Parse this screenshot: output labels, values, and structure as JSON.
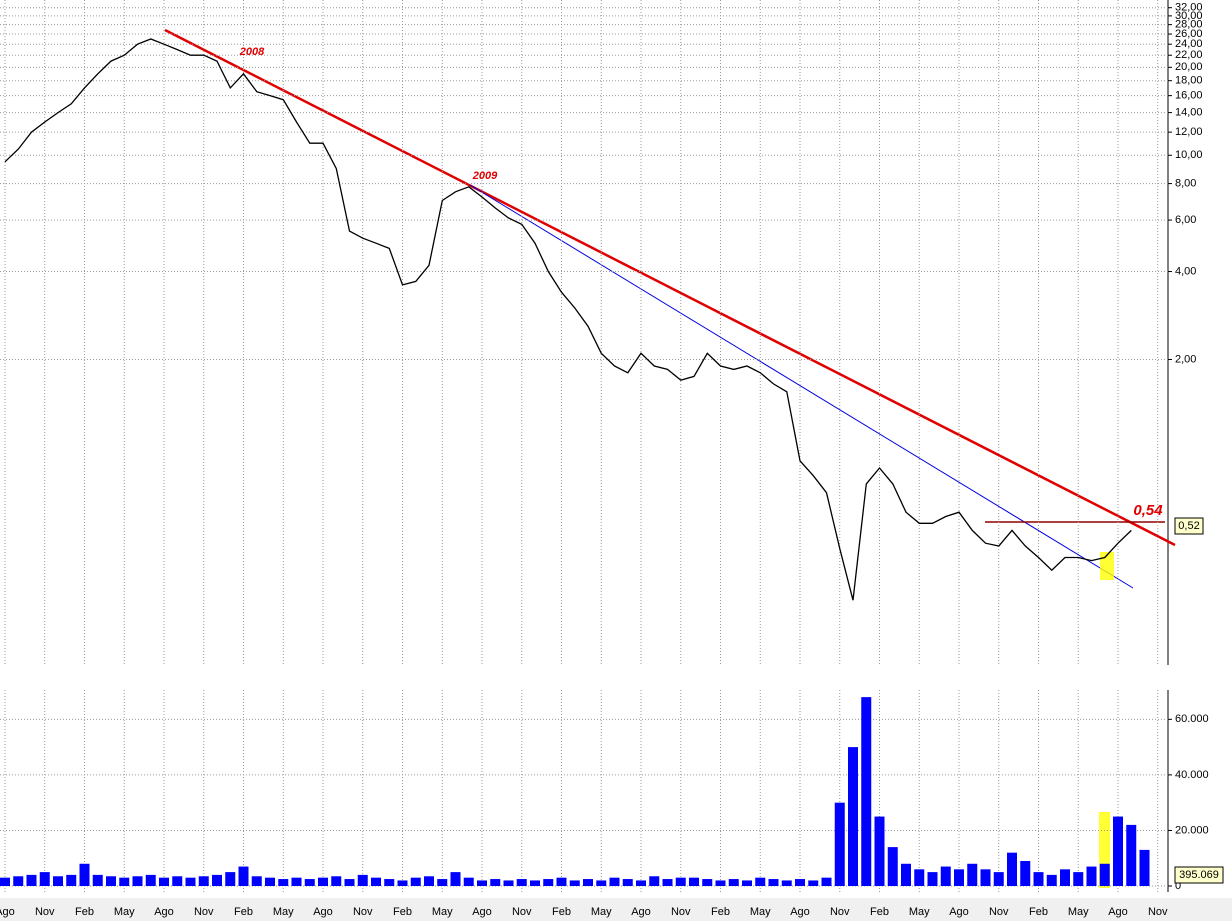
{
  "chart_data": [
    {
      "type": "line",
      "log_scale": true,
      "grid": true,
      "series": [
        {
          "name": "Price",
          "color": "#000000",
          "values": [
            9.5,
            10.5,
            12,
            13,
            14,
            15,
            17,
            19,
            21,
            22,
            24,
            25,
            24,
            23,
            22,
            22,
            21,
            17,
            19,
            16.5,
            16,
            15.5,
            13,
            11,
            11,
            9,
            5.5,
            5.2,
            5,
            4.8,
            3.6,
            3.7,
            4.2,
            7.0,
            7.5,
            7.8,
            7.2,
            6.6,
            6.1,
            5.8,
            5.0,
            4.0,
            3.4,
            3.0,
            2.6,
            2.1,
            1.9,
            1.8,
            2.1,
            1.9,
            1.85,
            1.7,
            1.75,
            2.1,
            1.9,
            1.85,
            1.9,
            1.8,
            1.65,
            1.55,
            0.9,
            0.8,
            0.7,
            0.45,
            0.3,
            0.75,
            0.85,
            0.75,
            0.6,
            0.55,
            0.55,
            0.58,
            0.6,
            0.52,
            0.47,
            0.46,
            0.52,
            0.46,
            0.42,
            0.38,
            0.42,
            0.42,
            0.41,
            0.42,
            0.47,
            0.52,
            null,
            null
          ]
        }
      ],
      "ylim": [
        0.18,
        34
      ],
      "yticks": [
        {
          "value": 32,
          "label": "32,00"
        },
        {
          "value": 30,
          "label": "30,00"
        },
        {
          "value": 28,
          "label": "28,00"
        },
        {
          "value": 26,
          "label": "26,00"
        },
        {
          "value": 24,
          "label": "24,00"
        },
        {
          "value": 22,
          "label": "22,00"
        },
        {
          "value": 20,
          "label": "20,00"
        },
        {
          "value": 18,
          "label": "18,00"
        },
        {
          "value": 16,
          "label": "16,00"
        },
        {
          "value": 14,
          "label": "14,00"
        },
        {
          "value": 12,
          "label": "12,00"
        },
        {
          "value": 10,
          "label": "10,00"
        },
        {
          "value": 8,
          "label": "8,00"
        },
        {
          "value": 6,
          "label": "6,00"
        },
        {
          "value": 4,
          "label": "4,00"
        },
        {
          "value": 2,
          "label": "2,00"
        }
      ],
      "annotations": [
        "2008",
        "2009",
        "0,54"
      ],
      "last_label": "0,52"
    },
    {
      "type": "bar",
      "grid": true,
      "color": "#0000ff",
      "categories": [
        "Ago",
        null,
        null,
        "Nov",
        null,
        null,
        "Feb",
        null,
        null,
        "May",
        null,
        null,
        "Ago",
        null,
        null,
        "Nov",
        null,
        null,
        "Feb",
        null,
        null,
        "May",
        null,
        null,
        "Ago",
        null,
        null,
        "Nov",
        null,
        null,
        "Feb",
        null,
        null,
        "May",
        null,
        null,
        "Ago",
        null,
        null,
        "Nov",
        null,
        null,
        "Feb",
        null,
        null,
        "May",
        null,
        null,
        "Ago",
        null,
        null,
        "Nov",
        null,
        null,
        "Feb",
        null,
        null,
        "May",
        null,
        null,
        "Ago",
        null,
        null,
        "Nov",
        null,
        null,
        "Feb",
        null,
        null,
        "May",
        null,
        null,
        "Ago",
        null,
        null,
        "Nov",
        null,
        null,
        "Feb",
        null,
        null,
        "May",
        null,
        null,
        "Ago",
        null,
        null,
        "Nov"
      ],
      "values": [
        3000,
        3500,
        4000,
        5000,
        3500,
        4000,
        8000,
        4000,
        3500,
        3000,
        3500,
        4000,
        3000,
        3500,
        3000,
        3500,
        4000,
        5000,
        7000,
        3500,
        3000,
        2500,
        3000,
        2500,
        3000,
        3500,
        2500,
        4000,
        3000,
        2500,
        2000,
        3000,
        3500,
        2500,
        5000,
        3000,
        2000,
        2500,
        2000,
        2500,
        2000,
        2500,
        3000,
        2000,
        2500,
        2000,
        3000,
        2500,
        2000,
        3500,
        2500,
        3000,
        3000,
        2500,
        2000,
        2500,
        2000,
        3000,
        2500,
        2000,
        2500,
        2000,
        3000,
        30000,
        50000,
        68000,
        25000,
        14000,
        8000,
        6000,
        5000,
        7000,
        6000,
        8000,
        6000,
        5000,
        12000,
        9000,
        5000,
        4000,
        6000,
        5000,
        7000,
        8000,
        25000,
        22000,
        13000,
        null
      ],
      "ylim": [
        0,
        72000
      ],
      "yticks": [
        0,
        {
          "value": 20000,
          "label": "20.000"
        },
        {
          "value": 40000,
          "label": "40.000"
        },
        {
          "value": 60000,
          "label": "60.000"
        }
      ],
      "last_label": "395.069"
    }
  ]
}
